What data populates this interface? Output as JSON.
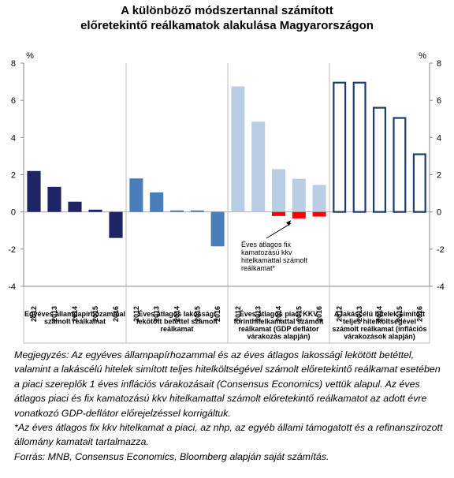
{
  "chart_data": {
    "type": "bar",
    "title_lines": [
      "A különböző módszertannal számított",
      "előretekintő reálkamatok alakulása Magyarországon"
    ],
    "ylabel_left": "%",
    "ylabel_right": "%",
    "ylim": [
      -4,
      8
    ],
    "yticks": [
      "8",
      "6",
      "4",
      "2",
      "0",
      "-2",
      "-4"
    ],
    "yticks_right": [
      "8",
      "6",
      "4",
      "2",
      "0",
      "-2",
      "-4"
    ],
    "grid": false,
    "groups": [
      {
        "label_lines": [
          "Egyéves állampapírhozammal",
          "számolt reálkamat"
        ],
        "years": [
          "2012",
          "2013",
          "2014",
          "2015",
          "2016"
        ],
        "values": [
          2.2,
          1.35,
          0.55,
          0.12,
          -1.4
        ],
        "color": "#1f2466",
        "style": "solid"
      },
      {
        "label_lines": [
          "Éves átlagos lakossági",
          "lekötött betéttel számolt",
          "reálkamat"
        ],
        "years": [
          "2012",
          "2013",
          "2014",
          "2015",
          "2016"
        ],
        "values": [
          1.8,
          1.05,
          0.08,
          0.08,
          -1.85
        ],
        "color": "#4a7ebb",
        "style": "solid"
      },
      {
        "label_lines": [
          "Éves átlagos piaci KKV",
          "forinthitelkamattal számolt",
          "reálkamat (GDP deflátor",
          "várakozás alapján)"
        ],
        "years": [
          "2012",
          "2013",
          "2014",
          "2015",
          "2016"
        ],
        "values": [
          6.75,
          4.85,
          2.3,
          1.78,
          1.45
        ],
        "color": "#b9cde5",
        "style": "solid"
      },
      {
        "label_lines": [
          "A lakáscélú hitelek simított",
          "teljes hitelköltségével",
          "számolt reálkamat (inflációs",
          "várakozások alapján)"
        ],
        "years": [
          "2012",
          "2013",
          "2014",
          "2015",
          "2016"
        ],
        "values": [
          6.95,
          6.95,
          5.6,
          5.05,
          3.1
        ],
        "color": "#1f3a73",
        "style": "outline"
      }
    ],
    "overlay_series": {
      "group_index": 2,
      "years": [
        "2014",
        "2015",
        "2016"
      ],
      "values": [
        -0.22,
        -0.35,
        -0.25
      ],
      "color": "#ff0000"
    },
    "annotation_lines": [
      "Éves átlagos fix",
      "kamatozású kkv",
      "hitelkamattal számolt",
      "reálkamat*"
    ]
  },
  "notes": [
    "Megjegyzés: Az egyéves állampapírhozammal és az éves átlagos lakossági lekötött betéttel, valamint a lakáscélú hitelek simított teljes hitelköltségével számolt előretekintő reálkamat esetében a piaci szereplők 1 éves inflációs várakozásait (Consensus Economics) vettük alapul. Az éves átlagos piaci és fix kamatozású kkv hitelkamattal számolt előretekintő reálkamatot az adott évre vonatkozó GDP-deflátor előrejelzéssel korrigáltuk.",
    "*Az éves átlagos fix kkv hitelkamat a piaci, az nhp, az egyéb állami támogatott és a refinanszírozott állomány kamatait tartalmazza.",
    "Forrás: MNB, Consensus Economics, Bloomberg alapján saját számítás."
  ]
}
